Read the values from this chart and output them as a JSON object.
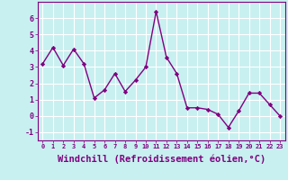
{
  "x": [
    0,
    1,
    2,
    3,
    4,
    5,
    6,
    7,
    8,
    9,
    10,
    11,
    12,
    13,
    14,
    15,
    16,
    17,
    18,
    19,
    20,
    21,
    22,
    23
  ],
  "y": [
    3.2,
    4.2,
    3.1,
    4.1,
    3.2,
    1.1,
    1.6,
    2.6,
    1.5,
    2.2,
    3.0,
    6.4,
    3.6,
    2.6,
    0.5,
    0.5,
    0.4,
    0.1,
    -0.7,
    0.3,
    1.4,
    1.4,
    0.7,
    0.0
  ],
  "line_color": "#800080",
  "marker": "D",
  "marker_size": 2.2,
  "line_width": 1.0,
  "xlabel": "Windchill (Refroidissement éolien,°C)",
  "xlabel_fontsize": 7.5,
  "xlim": [
    -0.5,
    23.5
  ],
  "ylim": [
    -1.5,
    7.0
  ],
  "yticks": [
    -1,
    0,
    1,
    2,
    3,
    4,
    5,
    6
  ],
  "xtick_labels": [
    "0",
    "1",
    "2",
    "3",
    "4",
    "5",
    "6",
    "7",
    "8",
    "9",
    "10",
    "11",
    "12",
    "13",
    "14",
    "15",
    "16",
    "17",
    "18",
    "19",
    "20",
    "21",
    "22",
    "23"
  ],
  "bg_color": "#c8f0f0",
  "grid_color": "#b0d8d8",
  "tick_color": "#800080",
  "axis_label_color": "#800080",
  "tick_label_color": "#800080"
}
